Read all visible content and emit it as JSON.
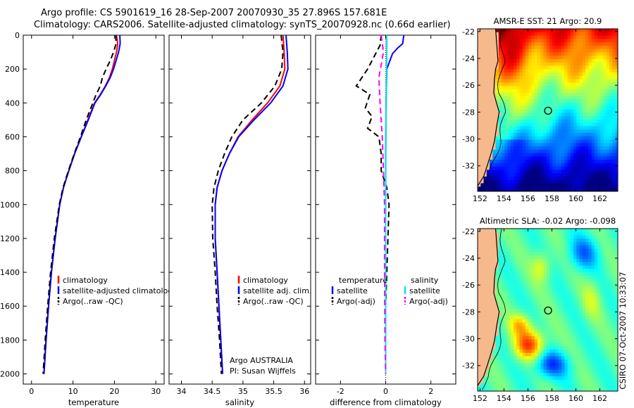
{
  "header": {
    "line1": "Argo profile: CS 5901619_16 28-Sep-2007 20070930_35 27.896S 157.681E",
    "line2": "Climatology: CARS2006. Satellite-adjusted climatology: synTS_20070928.nc (0.66d earlier)"
  },
  "credit": "CSIRO 07-Oct-2007 10:33:07",
  "colors": {
    "climatology": "#ff0000",
    "satellite": "#0000ff",
    "argo": "#000000",
    "salinity_satellite": "#00e5e5",
    "salinity_argo": "#ff00ff",
    "land": "#f5b98c"
  },
  "chart_data": [
    {
      "type": "line",
      "xlabel": "temperature",
      "y_ticks": [
        0,
        200,
        400,
        600,
        800,
        1000,
        1200,
        1400,
        1600,
        1800,
        2000
      ],
      "x_ticks": [
        0,
        10,
        20,
        30
      ],
      "xlim": [
        -2,
        32
      ],
      "ylim": [
        0,
        2060
      ],
      "y_reversed": true,
      "legend": [
        "climatology",
        "satellite-adjusted climatology",
        "Argo(..raw -QC)"
      ],
      "series": [
        {
          "name": "climatology",
          "color": "#ff0000",
          "dash": "",
          "points": [
            [
              20.5,
              0
            ],
            [
              20.8,
              50
            ],
            [
              20.5,
              100
            ],
            [
              20.0,
              150
            ],
            [
              19.5,
              200
            ],
            [
              18.8,
              250
            ],
            [
              17.8,
              300
            ],
            [
              16.6,
              350
            ],
            [
              15.2,
              400
            ],
            [
              13.6,
              500
            ],
            [
              12.0,
              600
            ],
            [
              10.4,
              700
            ],
            [
              9.0,
              800
            ],
            [
              7.7,
              900
            ],
            [
              6.8,
              1000
            ],
            [
              5.7,
              1200
            ],
            [
              4.8,
              1400
            ],
            [
              4.1,
              1600
            ],
            [
              3.5,
              1800
            ],
            [
              3.0,
              2000
            ]
          ]
        },
        {
          "name": "satellite-adjusted climatology",
          "color": "#0000ff",
          "dash": "",
          "points": [
            [
              21.3,
              0
            ],
            [
              21.4,
              50
            ],
            [
              21.0,
              100
            ],
            [
              20.4,
              150
            ],
            [
              19.8,
              200
            ],
            [
              19.0,
              250
            ],
            [
              17.9,
              300
            ],
            [
              16.7,
              350
            ],
            [
              15.3,
              400
            ],
            [
              13.7,
              500
            ],
            [
              12.0,
              600
            ],
            [
              10.4,
              700
            ],
            [
              9.0,
              800
            ],
            [
              7.7,
              900
            ],
            [
              6.8,
              1000
            ],
            [
              5.7,
              1200
            ],
            [
              4.8,
              1400
            ],
            [
              4.1,
              1600
            ],
            [
              3.5,
              1800
            ],
            [
              3.0,
              2000
            ]
          ]
        },
        {
          "name": "Argo(..raw -QC)",
          "color": "#000000",
          "dash": "8,5",
          "points": [
            [
              20.3,
              0
            ],
            [
              20.4,
              50
            ],
            [
              19.8,
              100
            ],
            [
              19.0,
              150
            ],
            [
              18.0,
              200
            ],
            [
              17.1,
              250
            ],
            [
              16.6,
              300
            ],
            [
              15.6,
              350
            ],
            [
              14.8,
              400
            ],
            [
              13.2,
              500
            ],
            [
              11.8,
              600
            ],
            [
              10.3,
              700
            ],
            [
              8.9,
              800
            ],
            [
              7.6,
              900
            ],
            [
              6.7,
              1000
            ],
            [
              5.5,
              1200
            ],
            [
              4.6,
              1400
            ],
            [
              3.9,
              1600
            ],
            [
              3.3,
              1800
            ],
            [
              2.8,
              2000
            ]
          ]
        }
      ]
    },
    {
      "type": "line",
      "xlabel": "salinity",
      "x_ticks": [
        34,
        34.5,
        35,
        35.5,
        36
      ],
      "xlim": [
        33.8,
        36.1
      ],
      "ylim": [
        0,
        2060
      ],
      "y_reversed": true,
      "legend": [
        "climatology",
        "satellite adj. clim.",
        "Argo(..raw -QC)"
      ],
      "annotation": [
        "Argo AUSTRALIA",
        "PI: Susan Wijffels"
      ],
      "series": [
        {
          "name": "climatology",
          "color": "#ff0000",
          "dash": "",
          "points": [
            [
              35.65,
              0
            ],
            [
              35.67,
              100
            ],
            [
              35.68,
              200
            ],
            [
              35.6,
              300
            ],
            [
              35.4,
              400
            ],
            [
              35.15,
              500
            ],
            [
              34.92,
              600
            ],
            [
              34.78,
              700
            ],
            [
              34.66,
              800
            ],
            [
              34.58,
              900
            ],
            [
              34.55,
              1000
            ],
            [
              34.55,
              1200
            ],
            [
              34.58,
              1400
            ],
            [
              34.61,
              1600
            ],
            [
              34.64,
              1800
            ],
            [
              34.67,
              2000
            ]
          ]
        },
        {
          "name": "satellite adj. clim.",
          "color": "#0000ff",
          "dash": "",
          "points": [
            [
              35.7,
              0
            ],
            [
              35.72,
              100
            ],
            [
              35.73,
              200
            ],
            [
              35.65,
              300
            ],
            [
              35.45,
              400
            ],
            [
              35.18,
              500
            ],
            [
              34.93,
              600
            ],
            [
              34.78,
              700
            ],
            [
              34.66,
              800
            ],
            [
              34.58,
              900
            ],
            [
              34.55,
              1000
            ],
            [
              34.55,
              1200
            ],
            [
              34.58,
              1400
            ],
            [
              34.61,
              1600
            ],
            [
              34.64,
              1800
            ],
            [
              34.67,
              2000
            ]
          ]
        },
        {
          "name": "Argo(..raw -QC)",
          "color": "#000000",
          "dash": "8,5",
          "points": [
            [
              35.62,
              0
            ],
            [
              35.65,
              100
            ],
            [
              35.63,
              200
            ],
            [
              35.52,
              300
            ],
            [
              35.3,
              400
            ],
            [
              35.0,
              500
            ],
            [
              34.82,
              600
            ],
            [
              34.7,
              700
            ],
            [
              34.6,
              800
            ],
            [
              34.53,
              900
            ],
            [
              34.5,
              1000
            ],
            [
              34.51,
              1200
            ],
            [
              34.55,
              1400
            ],
            [
              34.58,
              1600
            ],
            [
              34.62,
              1800
            ],
            [
              34.65,
              2000
            ]
          ]
        }
      ]
    },
    {
      "type": "line",
      "xlabel": "difference from climatology",
      "x_ticks": [
        -2,
        0,
        2
      ],
      "xlim": [
        -3.1,
        3.1
      ],
      "ylim": [
        0,
        2060
      ],
      "y_reversed": true,
      "legend_headers": [
        "temperature",
        "salinity"
      ],
      "legend": [
        "satellite",
        "Argo(-adj)",
        "satellite",
        "Argo(-adj)"
      ],
      "series": [
        {
          "name": "temperature satellite",
          "color": "#0000ff",
          "dash": "",
          "points": [
            [
              0.8,
              0
            ],
            [
              0.75,
              50
            ],
            [
              0.5,
              80
            ],
            [
              0.3,
              110
            ],
            [
              0.05,
              200
            ],
            [
              0.02,
              400
            ],
            [
              0,
              700
            ],
            [
              0,
              1000
            ],
            [
              0,
              1500
            ],
            [
              0,
              2000
            ]
          ]
        },
        {
          "name": "temperature Argo(-adj)",
          "color": "#000000",
          "dash": "8,5",
          "points": [
            [
              -0.2,
              0
            ],
            [
              -0.25,
              60
            ],
            [
              -0.8,
              200
            ],
            [
              -1.3,
              300
            ],
            [
              -0.7,
              350
            ],
            [
              -0.9,
              430
            ],
            [
              -0.6,
              480
            ],
            [
              -0.8,
              550
            ],
            [
              -0.3,
              600
            ],
            [
              -0.2,
              700
            ],
            [
              -0.2,
              800
            ],
            [
              0.05,
              900
            ],
            [
              0.15,
              1000
            ],
            [
              0.1,
              1200
            ],
            [
              0.05,
              1400
            ],
            [
              0,
              1600
            ],
            [
              0,
              2000
            ]
          ]
        },
        {
          "name": "salinity satellite",
          "color": "#00e5e5",
          "dash": "",
          "points": [
            [
              0.05,
              0
            ],
            [
              0.05,
              100
            ],
            [
              0.03,
              300
            ],
            [
              0.01,
              600
            ],
            [
              0,
              1000
            ],
            [
              0,
              2000
            ]
          ]
        },
        {
          "name": "salinity Argo(-adj)",
          "color": "#ff00ff",
          "dash": "8,5",
          "points": [
            [
              -0.2,
              0
            ],
            [
              -0.1,
              100
            ],
            [
              -0.3,
              250
            ],
            [
              -0.25,
              400
            ],
            [
              -0.15,
              600
            ],
            [
              -0.1,
              800
            ],
            [
              -0.05,
              1000
            ],
            [
              -0.05,
              1400
            ],
            [
              -0.03,
              1800
            ],
            [
              0,
              2000
            ]
          ]
        }
      ]
    },
    {
      "type": "heatmap",
      "title": "AMSR-E SST: 21  Argo: 20.9",
      "x_ticks": [
        152,
        154,
        156,
        158,
        160,
        162
      ],
      "y_ticks": [
        -22,
        -24,
        -26,
        -28,
        -30,
        -32
      ],
      "xlim": [
        151.8,
        163.5
      ],
      "ylim": [
        -33.9,
        -21.8
      ],
      "float_position": [
        157.681,
        -27.896
      ],
      "colormap": "jet"
    },
    {
      "type": "heatmap",
      "title": "Altimetric SLA: -0.02  Argo: -0.098",
      "x_ticks": [
        152,
        154,
        156,
        158,
        160,
        162
      ],
      "y_ticks": [
        -22,
        -24,
        -26,
        -28,
        -30,
        -32
      ],
      "xlim": [
        151.8,
        163.5
      ],
      "ylim": [
        -33.9,
        -21.8
      ],
      "float_position": [
        157.681,
        -27.896
      ],
      "colormap": "jet"
    }
  ]
}
